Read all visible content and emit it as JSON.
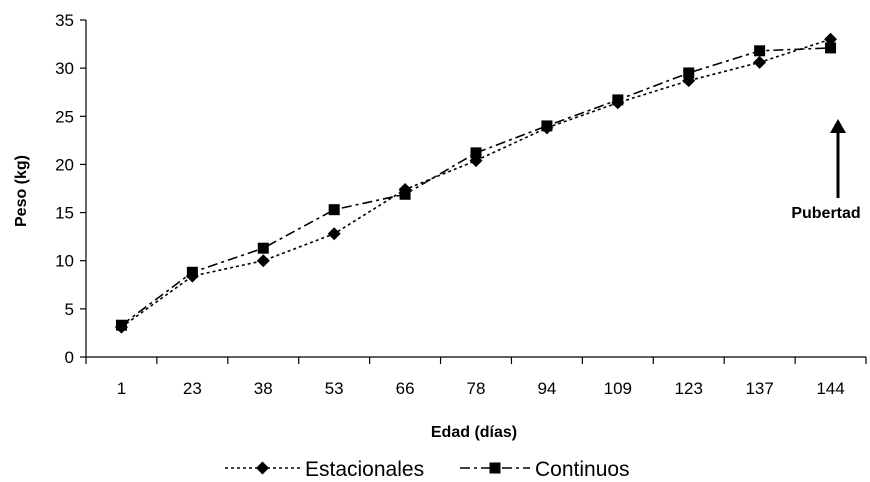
{
  "chart_data": {
    "type": "line",
    "categories": [
      "1",
      "23",
      "38",
      "53",
      "66",
      "78",
      "94",
      "109",
      "123",
      "137",
      "144"
    ],
    "series": [
      {
        "name": "Estacionales",
        "values": [
          3.1,
          8.4,
          10.0,
          12.8,
          17.4,
          20.4,
          23.8,
          26.4,
          28.7,
          30.6,
          33.0
        ]
      },
      {
        "name": "Continuos",
        "values": [
          3.3,
          8.8,
          11.3,
          15.3,
          16.9,
          21.2,
          24.0,
          26.7,
          29.5,
          31.8,
          32.1
        ]
      }
    ],
    "xlabel": "Edad (días)",
    "ylabel": "Peso (kg)",
    "ylim": [
      0,
      35
    ],
    "yticks": [
      "0",
      "5",
      "10",
      "15",
      "20",
      "25",
      "30",
      "35"
    ],
    "grid": false,
    "legend": "bottom",
    "annotation": {
      "text": "Pubertad",
      "category": "144",
      "value": 23.5
    },
    "colors": {
      "line": "#000000",
      "axis": "#000000"
    }
  }
}
